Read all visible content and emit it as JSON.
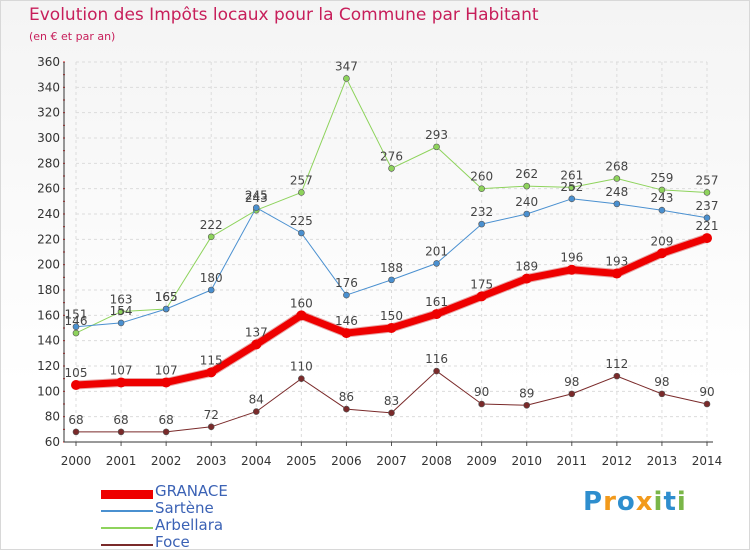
{
  "title": "Evolution des Impôts locaux pour la Commune par Habitant",
  "subtitle": "(en € et par an)",
  "brand": {
    "text": "Proxiti",
    "colors": [
      "#2e8ece",
      "#f29a1c",
      "#2e8ece",
      "#f29a1c",
      "#7ab648",
      "#2e8ece",
      "#7ab648"
    ]
  },
  "chart_data": {
    "type": "line",
    "x": [
      "2000",
      "2001",
      "2002",
      "2003",
      "2004",
      "2005",
      "2006",
      "2007",
      "2008",
      "2009",
      "2010",
      "2011",
      "2012",
      "2013",
      "2014"
    ],
    "ylim": [
      60,
      360
    ],
    "yticks": [
      60,
      80,
      100,
      120,
      140,
      160,
      180,
      200,
      220,
      240,
      260,
      280,
      300,
      320,
      340,
      360
    ],
    "grid": true,
    "legend_position": "bottom-left",
    "series": [
      {
        "name": "GRANACE",
        "color": "#ee0000",
        "width": 7,
        "values": [
          105,
          107,
          107,
          115,
          137,
          160,
          146,
          150,
          161,
          175,
          189,
          196,
          193,
          209,
          221
        ]
      },
      {
        "name": "Sartène",
        "color": "#4a90d0",
        "width": 1,
        "values": [
          151,
          154,
          165,
          180,
          245,
          225,
          176,
          188,
          201,
          232,
          240,
          252,
          248,
          243,
          237
        ]
      },
      {
        "name": "Arbellara",
        "color": "#8ed35c",
        "width": 1,
        "values": [
          146,
          163,
          165,
          222,
          243,
          257,
          347,
          276,
          293,
          260,
          262,
          261,
          268,
          259,
          257
        ]
      },
      {
        "name": "Foce",
        "color": "#7a2a2a",
        "width": 1,
        "values": [
          68,
          68,
          68,
          72,
          84,
          110,
          86,
          83,
          116,
          90,
          89,
          98,
          112,
          98,
          90
        ]
      }
    ]
  }
}
